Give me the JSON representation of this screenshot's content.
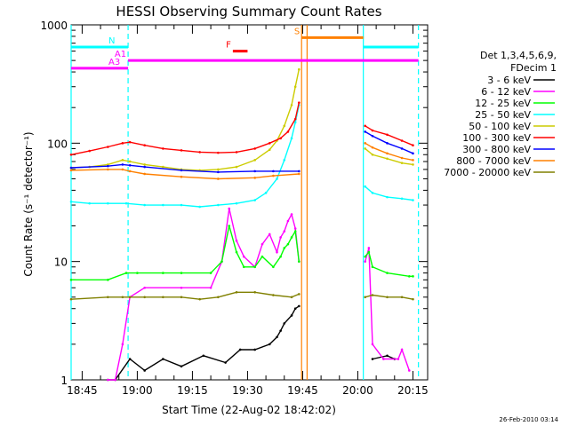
{
  "chart_data": {
    "type": "line",
    "title": "HESSI Observing Summary Count Rates",
    "xlabel": "Start Time (22-Aug-02 18:42:02)",
    "ylabel": "Count Rate (s⁻¹ detector⁻¹)",
    "yscale": "log",
    "ylim": [
      1,
      1000
    ],
    "xlim_minutes_after_start": [
      0,
      97
    ],
    "grid": false,
    "legend_position": "right",
    "x_tick_labels": [
      "18:45",
      "19:00",
      "19:15",
      "19:30",
      "19:45",
      "20:00",
      "20:15"
    ],
    "x_tick_minutes_after_start": [
      3,
      18,
      33,
      48,
      63,
      78,
      93
    ],
    "y_tick_labels": [
      "1",
      "10",
      "100",
      "1000"
    ],
    "y_tick_values": [
      1,
      10,
      100,
      1000
    ],
    "legend_header": [
      "Det 1,3,4,5,6,9,",
      "FDecim 1"
    ],
    "series": [
      {
        "name": "3 - 6 keV",
        "color": "#000000",
        "x": [
          10,
          12,
          16,
          20,
          25,
          30,
          36,
          42,
          46,
          50,
          54,
          56,
          57,
          58,
          60,
          61,
          62,
          82,
          86,
          88
        ],
        "values": [
          1,
          1,
          1.5,
          1.2,
          1.5,
          1.3,
          1.6,
          1.4,
          1.8,
          1.8,
          2,
          2.3,
          2.6,
          3,
          3.5,
          4,
          4.2,
          1.5,
          1.6,
          1.5
        ]
      },
      {
        "name": "6 - 12 keV",
        "color": "#ff00ff",
        "x": [
          10,
          12,
          14,
          16,
          20,
          30,
          38,
          41,
          43,
          45,
          47,
          50,
          52,
          54,
          56,
          57,
          58,
          59,
          60,
          61,
          62,
          80,
          81,
          82,
          85,
          89,
          90,
          92
        ],
        "values": [
          1,
          1,
          2,
          5,
          6,
          6,
          6,
          10,
          28,
          15,
          11,
          9,
          14,
          17,
          12,
          16,
          18,
          22,
          25,
          19,
          10,
          10,
          13,
          2,
          1.5,
          1.5,
          1.8,
          1.2
        ]
      },
      {
        "name": "12 - 25 keV",
        "color": "#00ff00",
        "x": [
          0,
          10,
          15,
          18,
          25,
          30,
          38,
          41,
          43,
          45,
          47,
          50,
          52,
          55,
          57,
          58,
          59,
          60,
          61,
          62,
          80,
          81,
          82,
          86,
          92,
          93
        ],
        "values": [
          7,
          7,
          8,
          8,
          8,
          8,
          8,
          10,
          20,
          12,
          9,
          9,
          11,
          9,
          11,
          13,
          14,
          16,
          18,
          10,
          11,
          12,
          9,
          8,
          7.5,
          7.5
        ]
      },
      {
        "name": "25 - 50 keV",
        "color": "#00ffff",
        "x": [
          0,
          5,
          10,
          15,
          20,
          25,
          30,
          35,
          40,
          45,
          50,
          53,
          56,
          58,
          60,
          61,
          62,
          80,
          82,
          86,
          90,
          93
        ],
        "values": [
          32,
          31,
          31,
          31,
          30,
          30,
          30,
          29,
          30,
          31,
          33,
          38,
          50,
          72,
          110,
          150,
          210,
          43,
          38,
          35,
          34,
          33
        ]
      },
      {
        "name": "50 - 100 keV",
        "color": "#cccc00",
        "x": [
          0,
          5,
          10,
          14,
          16,
          20,
          25,
          30,
          35,
          40,
          45,
          50,
          54,
          56,
          58,
          60,
          61,
          62,
          80,
          82,
          86,
          90,
          93
        ],
        "values": [
          62,
          63,
          66,
          72,
          70,
          66,
          63,
          60,
          59,
          60,
          63,
          72,
          88,
          105,
          140,
          210,
          300,
          420,
          90,
          80,
          74,
          68,
          66
        ]
      },
      {
        "name": "100 - 300 keV",
        "color": "#ff0000",
        "x": [
          0,
          5,
          10,
          14,
          16,
          20,
          25,
          30,
          35,
          40,
          45,
          50,
          54,
          57,
          59,
          61,
          62,
          80,
          82,
          86,
          90,
          93
        ],
        "values": [
          80,
          86,
          93,
          100,
          102,
          96,
          90,
          87,
          84,
          83,
          84,
          90,
          100,
          110,
          125,
          160,
          220,
          140,
          128,
          118,
          105,
          96
        ]
      },
      {
        "name": "300 - 800 keV",
        "color": "#0000ff",
        "x": [
          0,
          10,
          14,
          16,
          20,
          30,
          40,
          50,
          55,
          62,
          80,
          82,
          86,
          90,
          93
        ],
        "values": [
          62,
          64,
          66,
          65,
          63,
          59,
          57,
          58,
          58,
          58,
          125,
          115,
          100,
          90,
          82
        ]
      },
      {
        "name": "800 - 7000 keV",
        "color": "#ff8000",
        "x": [
          0,
          10,
          14,
          16,
          20,
          30,
          40,
          50,
          55,
          62,
          80,
          82,
          86,
          90,
          93
        ],
        "values": [
          59,
          60,
          60,
          58,
          55,
          52,
          50,
          51,
          53,
          55,
          100,
          92,
          82,
          75,
          72
        ]
      },
      {
        "name": "7000 - 20000 keV",
        "color": "#808000",
        "x": [
          0,
          10,
          14,
          16,
          20,
          25,
          30,
          35,
          40,
          45,
          50,
          55,
          60,
          62,
          80,
          82,
          86,
          90,
          93
        ],
        "values": [
          4.8,
          5,
          5,
          5,
          5,
          5,
          5,
          4.8,
          5,
          5.5,
          5.5,
          5.2,
          5,
          5.3,
          5,
          5.2,
          5,
          5,
          4.8
        ]
      }
    ],
    "vertical_lines": [
      {
        "x": 0,
        "color": "#00ffff",
        "style": "solid"
      },
      {
        "x": 15.5,
        "color": "#00ffff",
        "style": "dashed"
      },
      {
        "x": 62.7,
        "color": "#ff8000",
        "style": "solid"
      },
      {
        "x": 64.2,
        "color": "#ff8000",
        "style": "solid"
      },
      {
        "x": 79.5,
        "color": "#00ffff",
        "style": "solid"
      },
      {
        "x": 94.5,
        "color": "#00ffff",
        "style": "dashed"
      }
    ],
    "flag_bars": [
      {
        "label": "N",
        "color": "#00ffff",
        "x_start": 0,
        "x_end": 15.5,
        "y": 650
      },
      {
        "label": "",
        "color": "#00ffff",
        "x_start": 79.5,
        "x_end": 94.5,
        "y": 650
      },
      {
        "label": "S",
        "color": "#ff8000",
        "x_start": 62.7,
        "x_end": 79.5,
        "y": 780
      },
      {
        "label": "F",
        "color": "#ff0000",
        "x_start": 44,
        "x_end": 48,
        "y": 600
      },
      {
        "label": "A1",
        "color": "#ff00ff",
        "x_start": 15.5,
        "x_end": 94.5,
        "y": 500
      },
      {
        "label": "A3",
        "color": "#ff00ff",
        "x_start": 0,
        "x_end": 15.5,
        "y": 430
      }
    ],
    "timestamp": "26-Feb-2010 03:14"
  }
}
